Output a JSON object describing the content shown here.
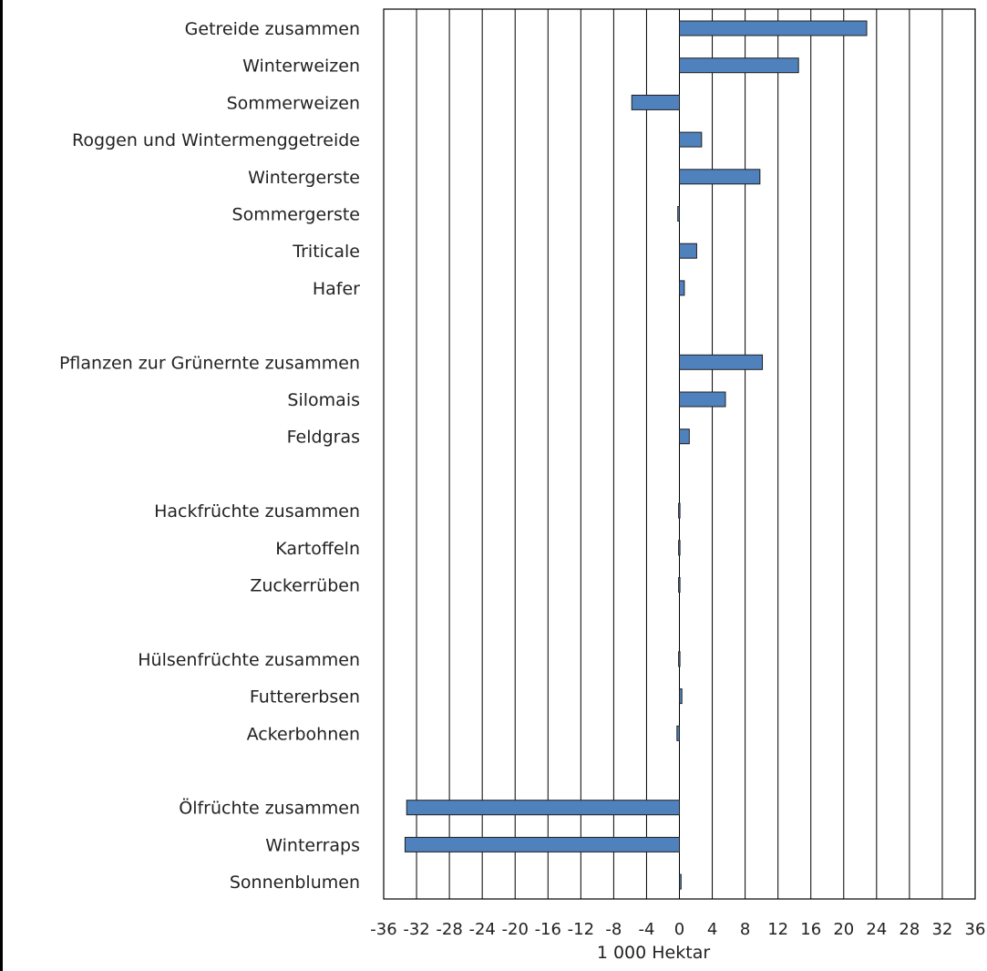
{
  "chart_data": {
    "type": "bar",
    "orientation": "horizontal",
    "categories": [
      "Getreide zusammen",
      "Winterweizen",
      "Sommerweizen",
      "Roggen und Wintermenggetreide",
      "Wintergerste",
      "Sommergerste",
      "Triticale",
      "Hafer",
      "",
      "Pflanzen zur Grünernte zusammen",
      "Silomais",
      "Feldgras",
      "",
      "Hackfrüchte zusammen",
      "Kartoffeln",
      "Zuckerrüben",
      "",
      "Hülsenfrüchte zusammen",
      "Futtererbsen",
      "Ackerbohnen",
      "",
      "Ölfrüchte zusammen",
      "Winterraps",
      "Sonnenblumen"
    ],
    "values": [
      22.8,
      14.5,
      -5.8,
      2.7,
      9.8,
      -0.2,
      2.1,
      0.6,
      null,
      10.1,
      5.6,
      1.2,
      null,
      -0.1,
      -0.1,
      -0.1,
      null,
      -0.1,
      0.3,
      -0.3,
      null,
      -33.2,
      -33.4,
      0.2
    ],
    "xlabel": "1 000 Hektar",
    "ylabel": "",
    "title": "",
    "xlim": [
      -36,
      36
    ],
    "xticks": [
      "-36",
      "-32",
      "-28",
      "-24",
      "-20",
      "-16",
      "-12",
      "-8",
      "-4",
      "0",
      "4",
      "8",
      "12",
      "16",
      "20",
      "24",
      "28",
      "32",
      "36"
    ],
    "grid": "vertical",
    "bar_color": "#4f81bd",
    "edge_color": "#1f1f1f"
  }
}
